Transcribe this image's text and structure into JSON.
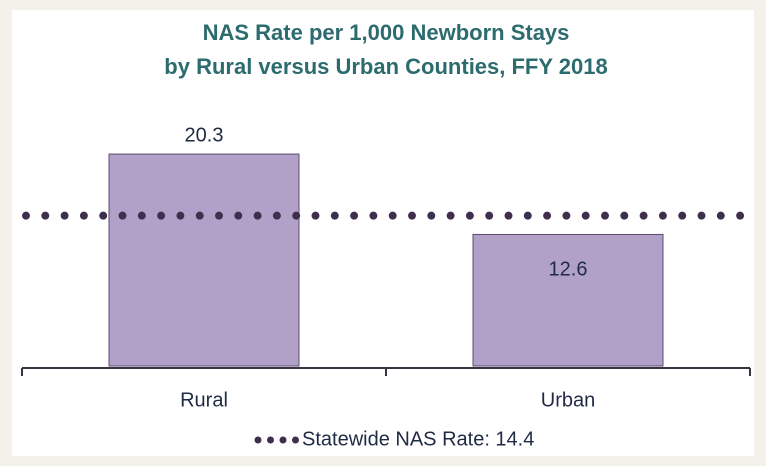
{
  "chart_data": {
    "type": "bar",
    "title": [
      "NAS Rate per 1,000 Newborn Stays",
      "by Rural versus Urban Counties, FFY 2018"
    ],
    "categories": [
      "Rural",
      "Urban"
    ],
    "values": [
      20.3,
      12.6
    ],
    "color": "#b1a1c8",
    "ylim": [
      0,
      25
    ],
    "reference_line": {
      "value": 14.4,
      "label": "Statewide NAS Rate: 14.4",
      "color": "#3e2f4d"
    }
  }
}
